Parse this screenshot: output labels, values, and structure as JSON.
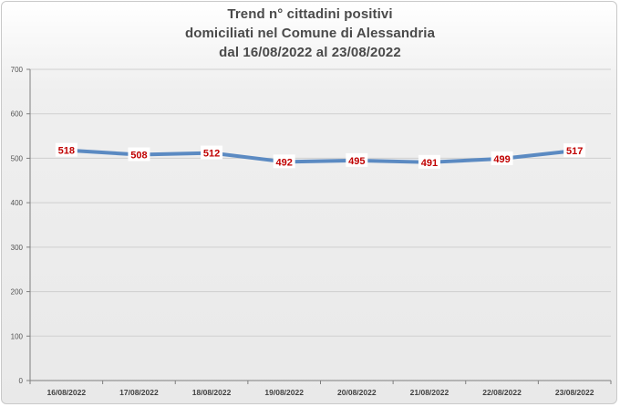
{
  "chart_data": {
    "type": "line",
    "title": [
      "Trend n° cittadini positivi",
      "domiciliati nel Comune di Alessandria",
      "dal 16/08/2022 al 23/08/2022"
    ],
    "categories": [
      "16/08/2022",
      "17/08/2022",
      "18/08/2022",
      "19/08/2022",
      "20/08/2022",
      "21/08/2022",
      "22/08/2022",
      "23/08/2022"
    ],
    "series": [
      {
        "values": [
          518,
          508,
          512,
          492,
          495,
          491,
          499,
          517
        ]
      }
    ],
    "ylim": [
      0,
      700
    ],
    "yticks": [
      0,
      100,
      200,
      300,
      400,
      500,
      600,
      700
    ],
    "grid": true,
    "legend": "none",
    "colors": {
      "line": "#5b8ac2",
      "data_label": "#c00000",
      "grid": "#cfcfcf"
    }
  }
}
